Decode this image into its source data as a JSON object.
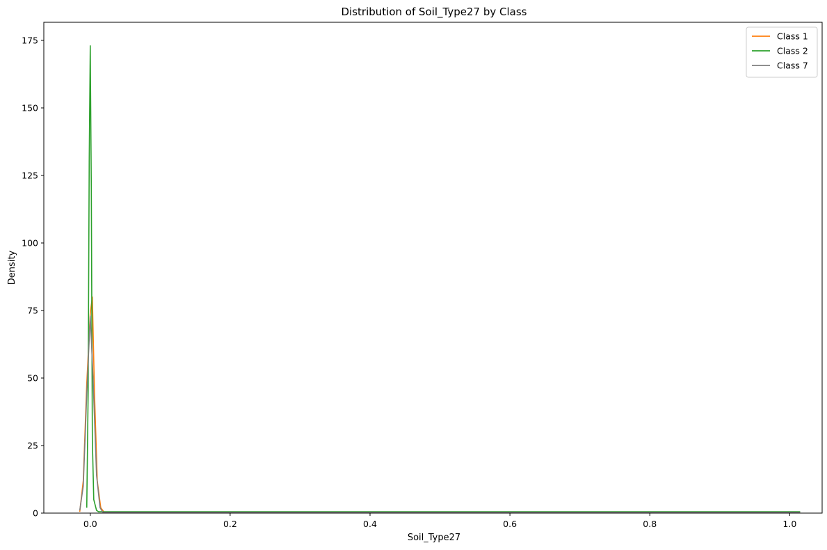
{
  "chart_data": {
    "type": "line",
    "title": "Distribution of Soil_Type27 by Class",
    "xlabel": "Soil_Type27",
    "ylabel": "Density",
    "xlim": [
      -0.0664,
      1.0464
    ],
    "ylim": [
      0,
      181.7
    ],
    "xticks": [
      0.0,
      0.2,
      0.4,
      0.6,
      0.8,
      1.0
    ],
    "xtick_labels": [
      "0.0",
      "0.2",
      "0.4",
      "0.6",
      "0.8",
      "1.0"
    ],
    "yticks": [
      0,
      25,
      50,
      75,
      100,
      125,
      150,
      175
    ],
    "ytick_labels": [
      "0",
      "25",
      "50",
      "75",
      "100",
      "125",
      "150",
      "175"
    ],
    "grid": false,
    "legend_position": "top-right",
    "series": [
      {
        "name": "Class 1",
        "color": "#ff7f0e",
        "x": [
          -0.015,
          -0.01,
          -0.005,
          0.0,
          0.003,
          0.006,
          0.01,
          0.015,
          0.02,
          0.2,
          0.4,
          0.6,
          0.8,
          1.0,
          1.015
        ],
        "y": [
          0.5,
          12,
          48,
          74,
          80,
          45,
          12,
          2,
          0.3,
          0.3,
          0.3,
          0.3,
          0.3,
          0.3,
          0.3
        ]
      },
      {
        "name": "Class 2",
        "color": "#2ca02c",
        "x": [
          -0.005,
          -0.003,
          -0.0015,
          0.0,
          0.0015,
          0.003,
          0.005,
          0.009,
          0.012,
          0.2,
          0.4,
          0.6,
          0.8,
          1.0,
          1.015
        ],
        "y": [
          2,
          45,
          130,
          173,
          120,
          27,
          5,
          1,
          0.5,
          0.5,
          0.5,
          0.5,
          0.5,
          0.5,
          0.5
        ]
      },
      {
        "name": "Class 7",
        "color": "#7f7f7f",
        "x": [
          -0.015,
          -0.01,
          -0.005,
          0.0,
          0.004,
          0.009,
          0.014,
          0.018,
          0.2,
          0.4,
          0.6,
          0.8,
          1.0,
          1.015
        ],
        "y": [
          1,
          10,
          44,
          73,
          50,
          14,
          2,
          0.3,
          0.3,
          0.3,
          0.3,
          0.3,
          0.3,
          0.3
        ]
      }
    ]
  }
}
